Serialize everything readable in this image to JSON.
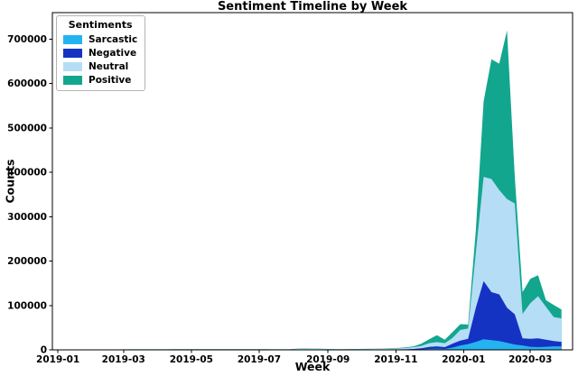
{
  "figure": {
    "title": "Sentiment Timeline by Week",
    "xlabel": "Week",
    "ylabel": "Counts"
  },
  "legend": {
    "title": "Sentiments",
    "items": [
      {
        "label": "Sarcastic",
        "color": "#24b3f0"
      },
      {
        "label": "Negative",
        "color": "#1433c3"
      },
      {
        "label": "Neutral",
        "color": "#b5ddf5"
      },
      {
        "label": "Positive",
        "color": "#12a68e"
      }
    ]
  },
  "chart_data": {
    "type": "area",
    "stacked": true,
    "title": "Sentiment Timeline by Week",
    "xlabel": "Week",
    "ylabel": "Counts",
    "grid": false,
    "legend_position": "upper left",
    "ylim": [
      0,
      760000
    ],
    "xlim": [
      "2018-12-27",
      "2020-04-08"
    ],
    "yticks": [
      {
        "value": 0,
        "label": "0"
      },
      {
        "value": 100000,
        "label": "100000"
      },
      {
        "value": 200000,
        "label": "200000"
      },
      {
        "value": 300000,
        "label": "300000"
      },
      {
        "value": 400000,
        "label": "400000"
      },
      {
        "value": 500000,
        "label": "500000"
      },
      {
        "value": 600000,
        "label": "600000"
      },
      {
        "value": 700000,
        "label": "700000"
      }
    ],
    "xticks": [
      {
        "value": "2019-01-01",
        "label": "2019-01"
      },
      {
        "value": "2019-03-01",
        "label": "2019-03"
      },
      {
        "value": "2019-05-01",
        "label": "2019-05"
      },
      {
        "value": "2019-07-01",
        "label": "2019-07"
      },
      {
        "value": "2019-09-01",
        "label": "2019-09"
      },
      {
        "value": "2019-11-01",
        "label": "2019-11"
      },
      {
        "value": "2020-01-01",
        "label": "2020-01"
      },
      {
        "value": "2020-03-01",
        "label": "2020-03"
      }
    ],
    "x": [
      "2019-01-06",
      "2019-01-13",
      "2019-01-20",
      "2019-01-27",
      "2019-02-03",
      "2019-02-10",
      "2019-02-17",
      "2019-02-24",
      "2019-03-03",
      "2019-03-10",
      "2019-03-17",
      "2019-03-24",
      "2019-03-31",
      "2019-04-07",
      "2019-04-14",
      "2019-04-21",
      "2019-04-28",
      "2019-05-05",
      "2019-05-12",
      "2019-05-19",
      "2019-05-26",
      "2019-06-02",
      "2019-06-09",
      "2019-06-16",
      "2019-06-23",
      "2019-06-30",
      "2019-07-07",
      "2019-07-14",
      "2019-07-21",
      "2019-07-28",
      "2019-08-04",
      "2019-08-11",
      "2019-08-18",
      "2019-08-25",
      "2019-09-01",
      "2019-09-08",
      "2019-09-15",
      "2019-09-22",
      "2019-09-29",
      "2019-10-06",
      "2019-10-13",
      "2019-10-20",
      "2019-10-27",
      "2019-11-03",
      "2019-11-10",
      "2019-11-17",
      "2019-11-24",
      "2019-12-01",
      "2019-12-08",
      "2019-12-15",
      "2019-12-22",
      "2019-12-29",
      "2020-01-05",
      "2020-01-12",
      "2020-01-19",
      "2020-01-26",
      "2020-02-02",
      "2020-02-09",
      "2020-02-16",
      "2020-02-23",
      "2020-03-01",
      "2020-03-08",
      "2020-03-15",
      "2020-03-22",
      "2020-03-29"
    ],
    "series": [
      {
        "name": "Sarcastic",
        "color": "#24b3f0",
        "values": [
          60,
          70,
          80,
          80,
          90,
          90,
          100,
          100,
          100,
          110,
          110,
          120,
          120,
          120,
          130,
          130,
          130,
          140,
          140,
          140,
          150,
          150,
          150,
          150,
          140,
          140,
          130,
          120,
          110,
          100,
          100,
          150,
          150,
          100,
          100,
          100,
          100,
          100,
          150,
          150,
          200,
          200,
          250,
          300,
          400,
          600,
          1000,
          2000,
          2500,
          2000,
          5000,
          10000,
          13000,
          18000,
          24000,
          22000,
          20000,
          16000,
          12000,
          10000,
          7000,
          6000,
          7000,
          8000,
          8000
        ]
      },
      {
        "name": "Negative",
        "color": "#1433c3",
        "values": [
          150,
          160,
          170,
          170,
          180,
          180,
          190,
          190,
          200,
          200,
          210,
          210,
          220,
          220,
          230,
          230,
          240,
          240,
          250,
          250,
          260,
          260,
          260,
          250,
          250,
          240,
          230,
          220,
          210,
          200,
          300,
          400,
          400,
          350,
          300,
          250,
          250,
          300,
          350,
          400,
          450,
          500,
          600,
          700,
          900,
          1400,
          2500,
          4500,
          5500,
          4000,
          9000,
          11000,
          12000,
          77000,
          131000,
          108000,
          105000,
          79000,
          68000,
          16000,
          18000,
          20000,
          16000,
          12000,
          10000
        ]
      },
      {
        "name": "Neutral",
        "color": "#b5ddf5",
        "values": [
          400,
          420,
          450,
          450,
          480,
          480,
          500,
          500,
          520,
          520,
          550,
          550,
          580,
          580,
          600,
          600,
          620,
          620,
          650,
          650,
          680,
          680,
          680,
          650,
          650,
          620,
          600,
          580,
          550,
          500,
          1500,
          2000,
          1800,
          1500,
          1200,
          900,
          800,
          900,
          1000,
          1100,
          1300,
          1500,
          1800,
          2200,
          2800,
          4000,
          5500,
          8500,
          9500,
          9000,
          13000,
          24000,
          23000,
          125000,
          235000,
          255000,
          235000,
          245000,
          250000,
          55000,
          80000,
          95000,
          74000,
          54000,
          53000
        ]
      },
      {
        "name": "Positive",
        "color": "#12a68e",
        "values": [
          250,
          260,
          280,
          280,
          300,
          300,
          320,
          320,
          340,
          340,
          360,
          360,
          380,
          380,
          400,
          400,
          420,
          420,
          440,
          440,
          460,
          460,
          460,
          440,
          440,
          420,
          400,
          380,
          360,
          340,
          600,
          800,
          700,
          600,
          500,
          400,
          400,
          450,
          500,
          550,
          600,
          700,
          800,
          1000,
          1300,
          2000,
          5000,
          9000,
          15500,
          8000,
          13000,
          13000,
          9000,
          50000,
          170000,
          270000,
          285000,
          380000,
          60000,
          49000,
          55000,
          47000,
          15000,
          27000,
          20000
        ]
      }
    ]
  }
}
